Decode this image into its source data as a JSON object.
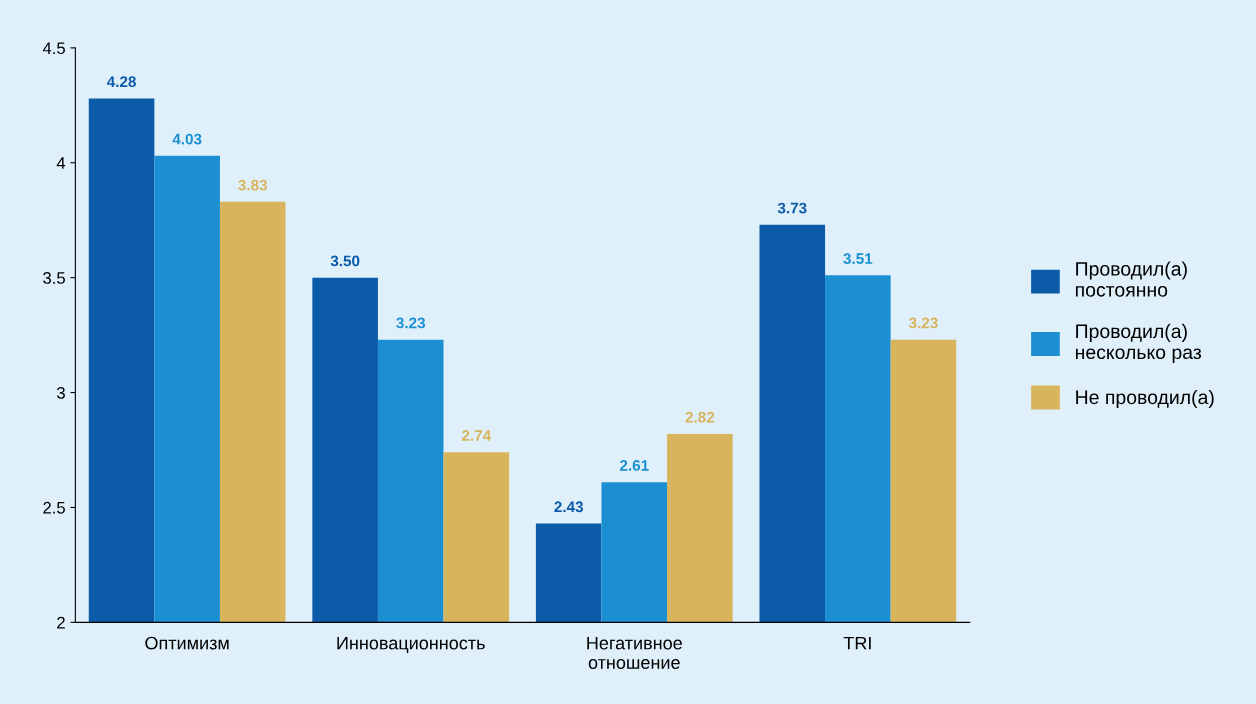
{
  "chart_data": {
    "type": "bar",
    "categories": [
      "Оптимизм",
      "Инновационность",
      "Негативное\nотношение",
      "TRI"
    ],
    "series": [
      {
        "name": "Проводил(а)\nпостоянно",
        "color": "#0b5ba8",
        "values": [
          4.28,
          3.5,
          2.43,
          3.73
        ],
        "value_labels": [
          "4.28",
          "3.50",
          "2.43",
          "3.73"
        ]
      },
      {
        "name": "Проводил(а)\nнесколько раз",
        "color": "#1b8fd2",
        "values": [
          4.03,
          3.23,
          2.61,
          3.51
        ],
        "value_labels": [
          "4.03",
          "3.23",
          "2.61",
          "3.51"
        ]
      },
      {
        "name": "Не проводил(а)",
        "color": "#d8b45c",
        "values": [
          3.83,
          2.74,
          2.82,
          3.23
        ],
        "value_labels": [
          "3.83",
          "2.74",
          "2.82",
          "3.23"
        ]
      }
    ],
    "ylim": [
      2,
      4.5
    ],
    "yticks": [
      2,
      2.5,
      3,
      3.5,
      4,
      4.5
    ],
    "grid": false,
    "legend": "right"
  }
}
